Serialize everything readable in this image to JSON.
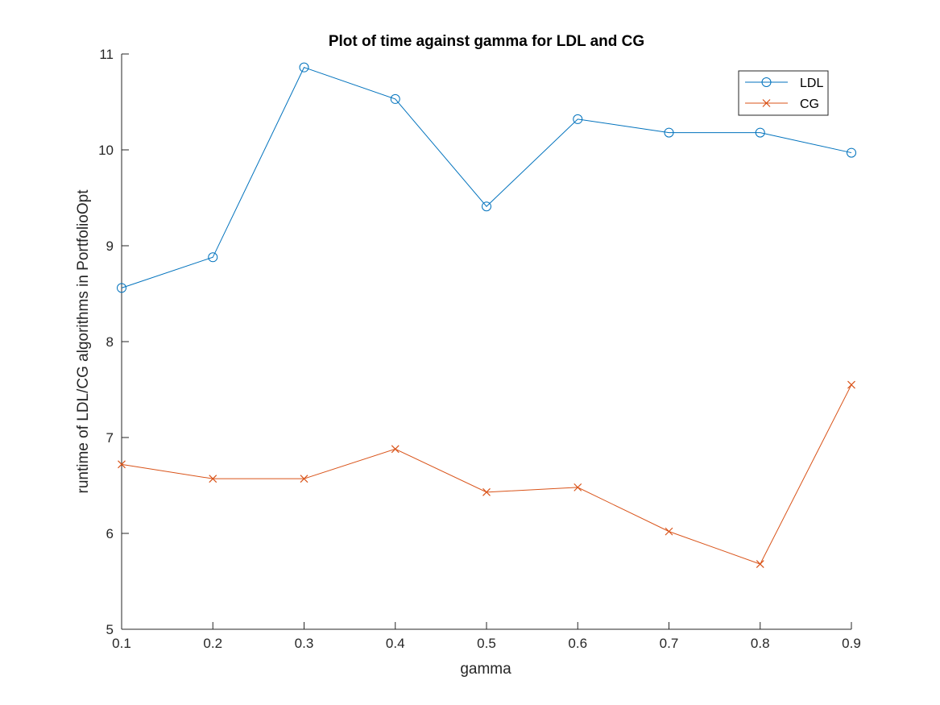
{
  "chart_data": {
    "type": "line",
    "title": "Plot of time against gamma for LDL and CG",
    "xlabel": "gamma",
    "ylabel": "runtime of LDL/CG algorithms in PortfolioOpt",
    "xlim": [
      0.1,
      0.9
    ],
    "ylim": [
      5,
      11
    ],
    "xticks": [
      "0.1",
      "0.2",
      "0.3",
      "0.4",
      "0.5",
      "0.6",
      "0.7",
      "0.8",
      "0.9"
    ],
    "yticks": [
      "5",
      "6",
      "7",
      "8",
      "9",
      "10",
      "11"
    ],
    "grid": false,
    "legend_position": "top-right",
    "x": [
      0.1,
      0.2,
      0.3,
      0.4,
      0.5,
      0.6,
      0.7,
      0.8,
      0.9
    ],
    "series": [
      {
        "name": "LDL",
        "marker": "circle",
        "color": "#0072BD",
        "values": [
          8.56,
          8.88,
          10.86,
          10.53,
          9.41,
          10.32,
          10.18,
          10.18,
          9.97
        ]
      },
      {
        "name": "CG",
        "marker": "x",
        "color": "#D95319",
        "values": [
          6.72,
          6.57,
          6.57,
          6.88,
          6.43,
          6.48,
          6.02,
          5.68,
          7.55
        ]
      }
    ]
  }
}
